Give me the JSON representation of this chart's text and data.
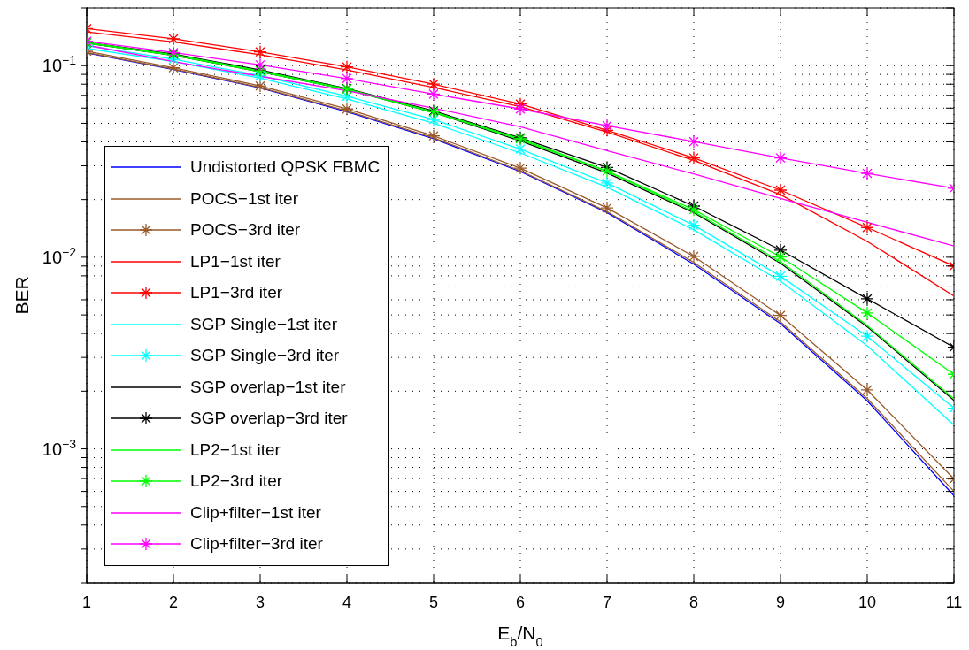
{
  "chart_data": {
    "type": "line",
    "xlabel": "E$_{b}$/N$_{0}$",
    "ylabel": "BER",
    "log": "y",
    "grid": true,
    "legend": "bottom left",
    "line_style": "solid",
    "x": [
      1,
      2,
      3,
      4,
      5,
      6,
      7,
      8,
      9,
      10,
      11
    ],
    "xlim": [
      1,
      11
    ],
    "xticks": [
      1,
      2,
      3,
      4,
      5,
      6,
      7,
      8,
      9,
      10,
      11
    ],
    "ylim": [
      0.0002,
      0.2
    ],
    "yticks": [
      {
        "value": 0.0002,
        "label": null
      },
      {
        "value": 0.0003,
        "label": null
      },
      {
        "value": 0.0004,
        "label": null
      },
      {
        "value": 0.0005,
        "label": null
      },
      {
        "value": 0.0006,
        "label": null
      },
      {
        "value": 0.0007,
        "label": null
      },
      {
        "value": 0.0008,
        "label": null
      },
      {
        "value": 0.0009,
        "label": null
      },
      {
        "value": 0.001,
        "label": "10$^{−3}$"
      },
      {
        "value": 0.002,
        "label": null
      },
      {
        "value": 0.003,
        "label": null
      },
      {
        "value": 0.004,
        "label": null
      },
      {
        "value": 0.005,
        "label": null
      },
      {
        "value": 0.006,
        "label": null
      },
      {
        "value": 0.007,
        "label": null
      },
      {
        "value": 0.008,
        "label": null
      },
      {
        "value": 0.009,
        "label": null
      },
      {
        "value": 0.01,
        "label": "10$^{−2}$"
      },
      {
        "value": 0.02,
        "label": null
      },
      {
        "value": 0.03,
        "label": null
      },
      {
        "value": 0.04,
        "label": null
      },
      {
        "value": 0.05,
        "label": null
      },
      {
        "value": 0.06,
        "label": null
      },
      {
        "value": 0.07,
        "label": null
      },
      {
        "value": 0.08,
        "label": null
      },
      {
        "value": 0.09,
        "label": null
      },
      {
        "value": 0.1,
        "label": "10$^{−1}$"
      },
      {
        "value": 0.2,
        "label": null
      }
    ],
    "series": [
      {
        "name": "Undistorted QPSK FBMC",
        "color": "#0000ff",
        "marker": "none",
        "values": [
          0.1165,
          0.0955,
          0.0765,
          0.0575,
          0.0415,
          0.028,
          0.0171,
          0.0092,
          0.0045,
          0.00178,
          0.00057
        ]
      },
      {
        "name": "POCS−1st iter",
        "color": "#9a5a2a",
        "marker": "none",
        "values": [
          0.117,
          0.096,
          0.077,
          0.058,
          0.042,
          0.0283,
          0.0173,
          0.0094,
          0.0046,
          0.00183,
          0.0006
        ]
      },
      {
        "name": "POCS−3rd iter",
        "color": "#9a5a2a",
        "marker": "cross",
        "values": [
          0.119,
          0.0975,
          0.0784,
          0.0594,
          0.043,
          0.0292,
          0.0181,
          0.0101,
          0.00497,
          0.00203,
          0.000697
        ]
      },
      {
        "name": "LP1−1st iter",
        "color": "#ff0000",
        "marker": "none",
        "values": [
          0.15,
          0.133,
          0.114,
          0.095,
          0.077,
          0.061,
          0.045,
          0.032,
          0.0212,
          0.0121,
          0.00628
        ]
      },
      {
        "name": "LP1−3rd iter",
        "color": "#ff0000",
        "marker": "cross",
        "values": [
          0.156,
          0.138,
          0.118,
          0.0985,
          0.08,
          0.063,
          0.046,
          0.033,
          0.0224,
          0.0143,
          0.009
        ]
      },
      {
        "name": "SGP Single−1st iter",
        "color": "#00ffff",
        "marker": "none",
        "values": [
          0.123,
          0.105,
          0.086,
          0.067,
          0.05,
          0.035,
          0.0232,
          0.0139,
          0.0075,
          0.00345,
          0.00133
        ]
      },
      {
        "name": "SGP Single−3rd iter",
        "color": "#00ffff",
        "marker": "cross",
        "values": [
          0.127,
          0.108,
          0.0887,
          0.0692,
          0.0523,
          0.0367,
          0.0244,
          0.0147,
          0.00796,
          0.00387,
          0.00163
        ]
      },
      {
        "name": "SGP overlap−1st iter",
        "color": "#000000",
        "marker": "none",
        "values": [
          0.131,
          0.113,
          0.093,
          0.075,
          0.057,
          0.0405,
          0.0275,
          0.0171,
          0.0093,
          0.00434,
          0.00179
        ]
      },
      {
        "name": "SGP overlap−3rd iter",
        "color": "#000000",
        "marker": "cross",
        "values": [
          0.132,
          0.115,
          0.095,
          0.076,
          0.058,
          0.042,
          0.0294,
          0.0185,
          0.0109,
          0.00607,
          0.00339
        ]
      },
      {
        "name": "LP2−1st iter",
        "color": "#00ff00",
        "marker": "none",
        "values": [
          0.131,
          0.113,
          0.093,
          0.075,
          0.057,
          0.041,
          0.028,
          0.0173,
          0.0095,
          0.0044,
          0.00182
        ]
      },
      {
        "name": "LP2−3rd iter",
        "color": "#00ff00",
        "marker": "cross",
        "values": [
          0.132,
          0.114,
          0.094,
          0.0756,
          0.0574,
          0.0415,
          0.0282,
          0.0177,
          0.01004,
          0.00512,
          0.00245
        ]
      },
      {
        "name": "Clip+filter−1st iter",
        "color": "#ff00ff",
        "marker": "none",
        "values": [
          0.128,
          0.105,
          0.088,
          0.074,
          0.06,
          0.048,
          0.036,
          0.0272,
          0.0203,
          0.0152,
          0.01146
        ]
      },
      {
        "name": "Clip+filter−3rd iter",
        "color": "#ff00ff",
        "marker": "cross",
        "values": [
          0.134,
          0.117,
          0.101,
          0.0856,
          0.071,
          0.0594,
          0.0486,
          0.0401,
          0.033,
          0.0274,
          0.0229
        ]
      }
    ]
  }
}
